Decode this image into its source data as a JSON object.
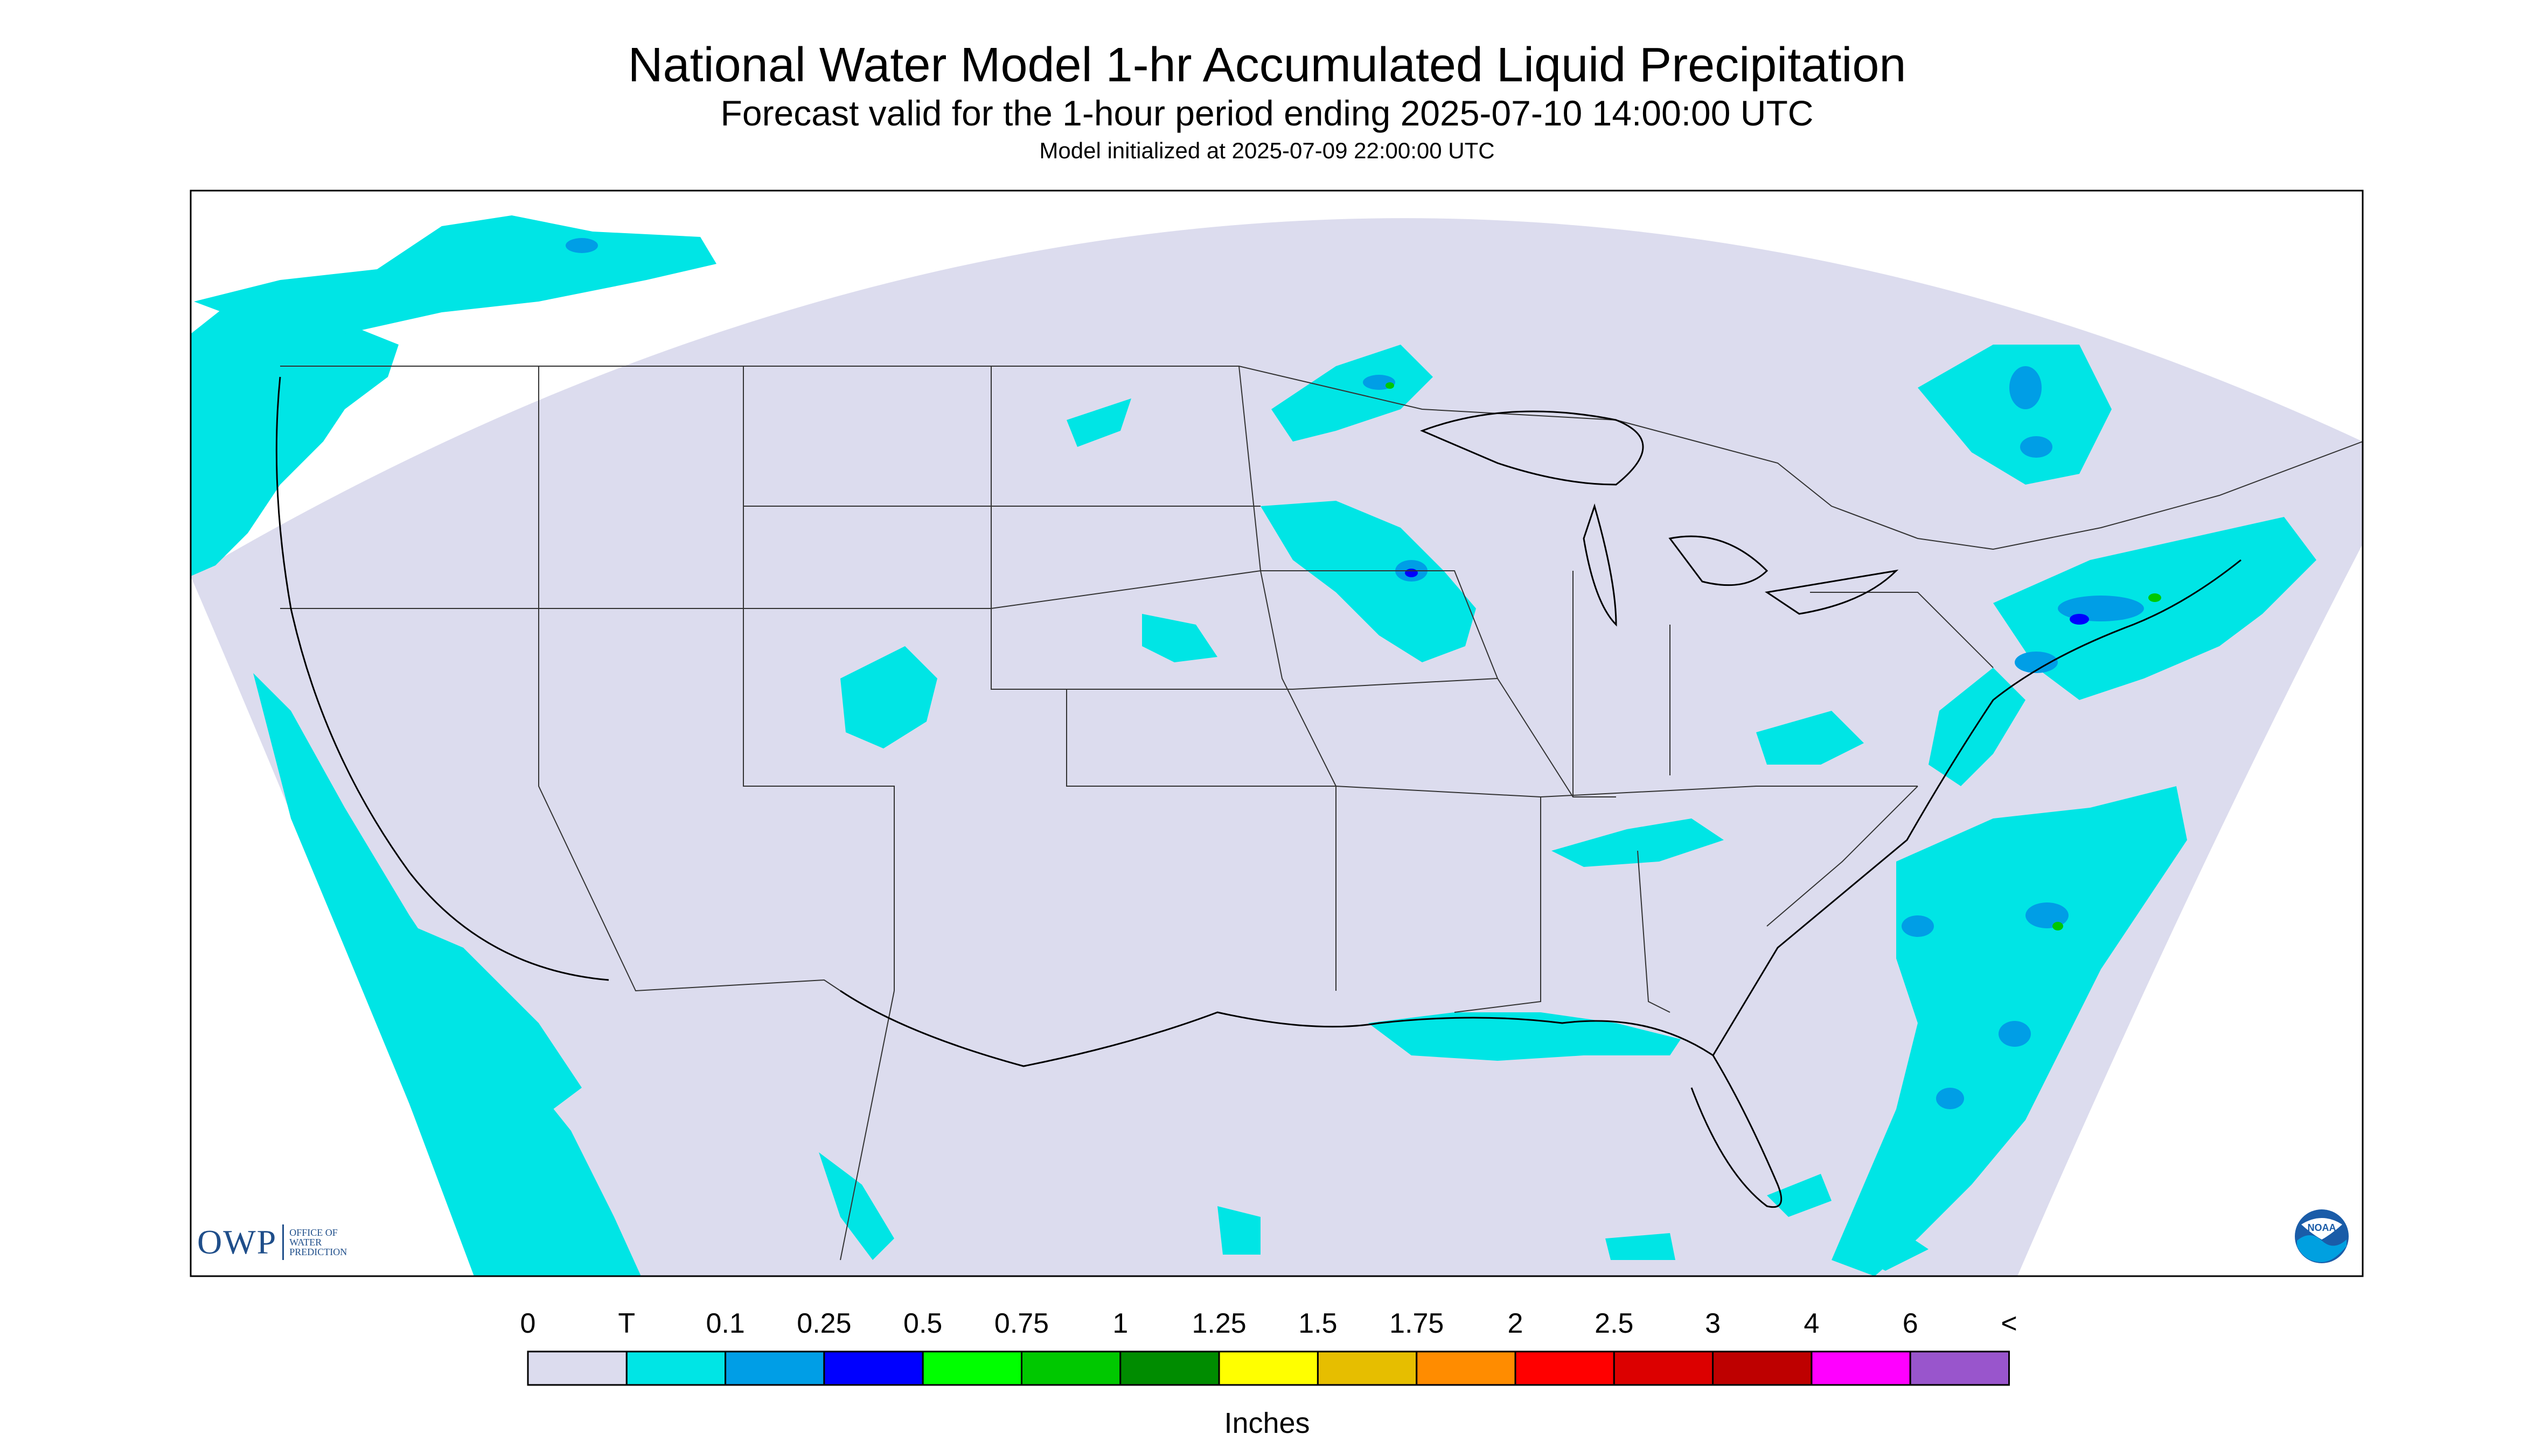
{
  "header": {
    "title": "National Water Model 1-hr Accumulated Liquid Precipitation",
    "subtitle": "Forecast valid for the 1-hour period ending 2025-07-10 14:00:00 UTC",
    "init": "Model initialized at 2025-07-09 22:00:00 UTC"
  },
  "map": {
    "background_color": "#dcdcee",
    "projection": "Lambert conformal (CONUS)",
    "border_color": "#000000"
  },
  "colorbar": {
    "units": "Inches",
    "labels": [
      "0",
      "T",
      "0.1",
      "0.25",
      "0.5",
      "0.75",
      "1",
      "1.25",
      "1.5",
      "1.75",
      "2",
      "2.5",
      "3",
      "4",
      "6",
      "<"
    ],
    "colors": [
      "#dcdcee",
      "#00e5e5",
      "#009ee6",
      "#0000ff",
      "#00ff00",
      "#00c800",
      "#008c00",
      "#ffff00",
      "#e6be00",
      "#ff8c00",
      "#ff0000",
      "#dc0000",
      "#be0000",
      "#ff00ff",
      "#9955cc"
    ]
  },
  "logos": {
    "owp_mark": "OWP",
    "owp_text": [
      "OFFICE OF",
      "WATER",
      "PREDICTION"
    ],
    "noaa_text": "NOAA"
  }
}
